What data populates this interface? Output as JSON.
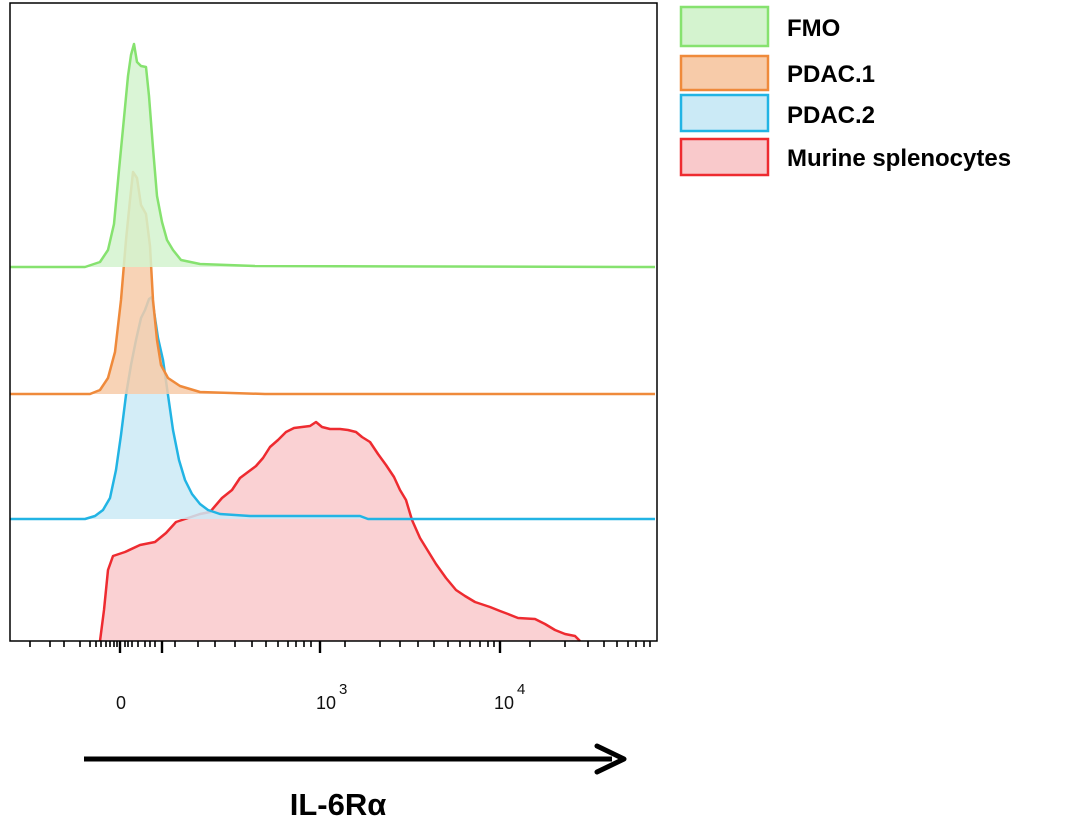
{
  "chart_data": {
    "type": "area",
    "xlabel": "IL-6Rα",
    "ylabel": "",
    "x_scale": "logicle",
    "x_ticks": [
      {
        "value": 0,
        "label": "0",
        "exponent": ""
      },
      {
        "value": 1000,
        "label": "10",
        "exponent": "3"
      },
      {
        "value": 10000,
        "label": "10",
        "exponent": "4"
      }
    ],
    "legend_position": "right",
    "grid": false,
    "series": [
      {
        "name": "FMO",
        "stroke": "#86e26f",
        "fill": "#d4f3cf",
        "peak_x": 0,
        "max_x": 130
      },
      {
        "name": "PDAC.1",
        "stroke": "#ef8a3b",
        "fill": "#f7cba9",
        "peak_x": 0,
        "max_x": 160
      },
      {
        "name": "PDAC.2",
        "stroke": "#22b4e4",
        "fill": "#cbeaf6",
        "peak_x": 30,
        "max_x": 230
      },
      {
        "name": "Murine splenocytes",
        "stroke": "#ee2b30",
        "fill": "#f9c9cb",
        "peak_x": 1000,
        "max_x": 22000
      }
    ]
  }
}
